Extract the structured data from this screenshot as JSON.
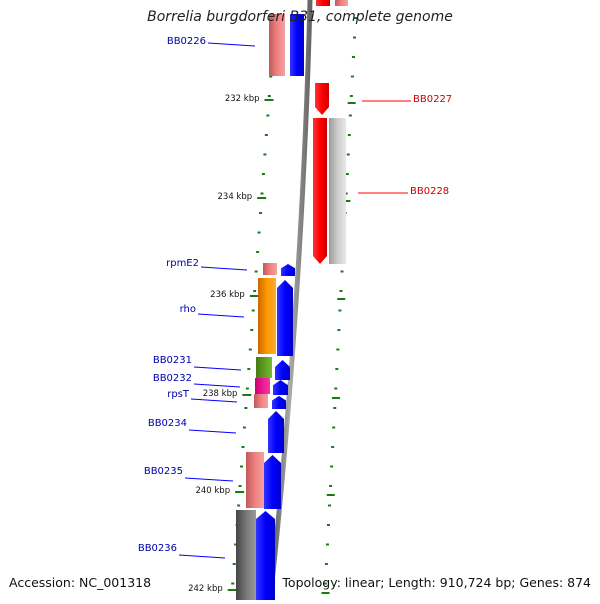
{
  "title": "Borrelia burgdorferi B31, complete genome",
  "footer": {
    "accession": "Accession: NC_001318",
    "summary": "Topology: linear; Length: 910,724 bp; Genes: 874"
  },
  "scale_ticks": [
    "232 kbp",
    "234 kbp",
    "236 kbp",
    "238 kbp",
    "240 kbp",
    "242 kbp"
  ],
  "genes": [
    {
      "id": "BB0226",
      "label": "BB0226",
      "strand": "+"
    },
    {
      "id": "BB0227",
      "label": "BB0227",
      "strand": "-"
    },
    {
      "id": "BB0228",
      "label": "BB0228",
      "strand": "-"
    },
    {
      "id": "rpmE2",
      "label": "rpmE2",
      "strand": "+"
    },
    {
      "id": "rho",
      "label": "rho",
      "strand": "+"
    },
    {
      "id": "BB0231",
      "label": "BB0231",
      "strand": "+"
    },
    {
      "id": "BB0232",
      "label": "BB0232",
      "strand": "+"
    },
    {
      "id": "rpsT",
      "label": "rpsT",
      "strand": "+"
    },
    {
      "id": "BB0234",
      "label": "BB0234",
      "strand": "+"
    },
    {
      "id": "BB0235",
      "label": "BB0235",
      "strand": "+"
    },
    {
      "id": "BB0236",
      "label": "BB0236",
      "strand": "+"
    }
  ],
  "colors": {
    "forward_cds": "#0000ff",
    "reverse_cds": "#ff0000",
    "forward_label": "#0000aa",
    "reverse_label": "#cc0000",
    "tick": "#1a7a1a",
    "backbone": "#8a8a8a",
    "rna_pink": "#f08080",
    "rho_orange": "#ff9900",
    "bb0231_green": "#66aa22",
    "bb0232_magenta": "#ee1199",
    "grey_feature": "#bbbbbb"
  }
}
